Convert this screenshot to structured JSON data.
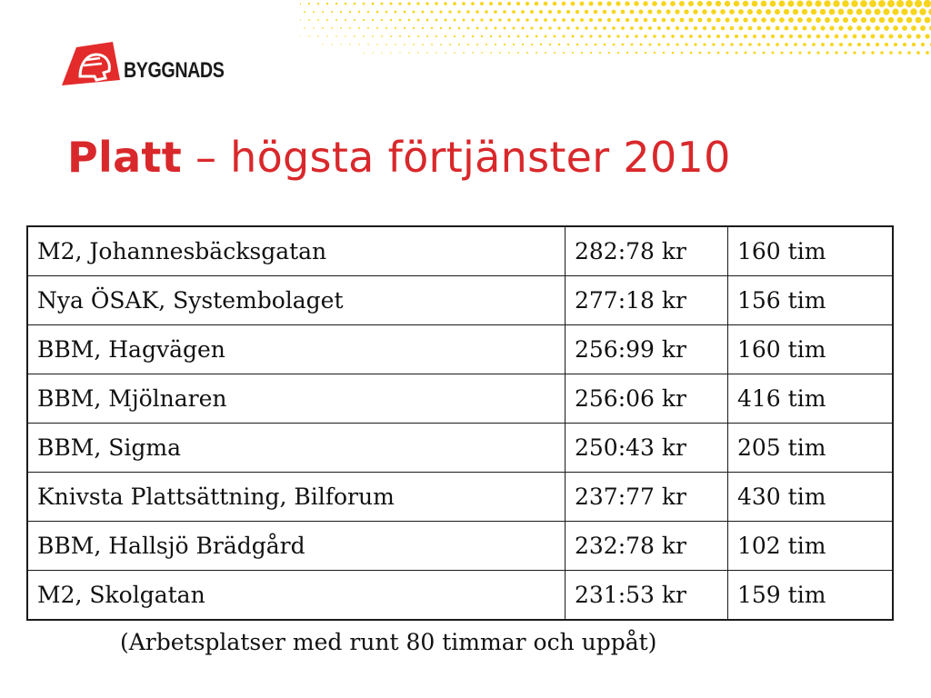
{
  "logo": {
    "text": "BYGGNADS",
    "brand_color": "#e32b2b"
  },
  "title": {
    "bold": "Platt",
    "rest": " – högsta förtjänster 2010",
    "color": "#d9282b"
  },
  "table": {
    "rows": [
      {
        "site": "M2, Johannesbäcksgatan",
        "wage": "282:78 kr",
        "hours": "160 tim"
      },
      {
        "site": "Nya ÖSAK, Systembolaget",
        "wage": "277:18 kr",
        "hours": "156 tim"
      },
      {
        "site": "BBM, Hagvägen",
        "wage": "256:99 kr",
        "hours": "160 tim"
      },
      {
        "site": "BBM, Mjölnaren",
        "wage": "256:06 kr",
        "hours": "416 tim"
      },
      {
        "site": "BBM, Sigma",
        "wage": "250:43 kr",
        "hours": "205 tim"
      },
      {
        "site": "Knivsta Plattsättning, Bilforum",
        "wage": "237:77 kr",
        "hours": "430 tim"
      },
      {
        "site": "BBM, Hallsjö Brädgård",
        "wage": "232:78 kr",
        "hours": "102 tim"
      },
      {
        "site": "M2, Skolgatan",
        "wage": "231:53 kr",
        "hours": "159 tim"
      }
    ]
  },
  "footnote": "(Arbetsplatser med runt 80 timmar och uppåt)",
  "decoration": {
    "dot_color": "#f7d51d"
  }
}
